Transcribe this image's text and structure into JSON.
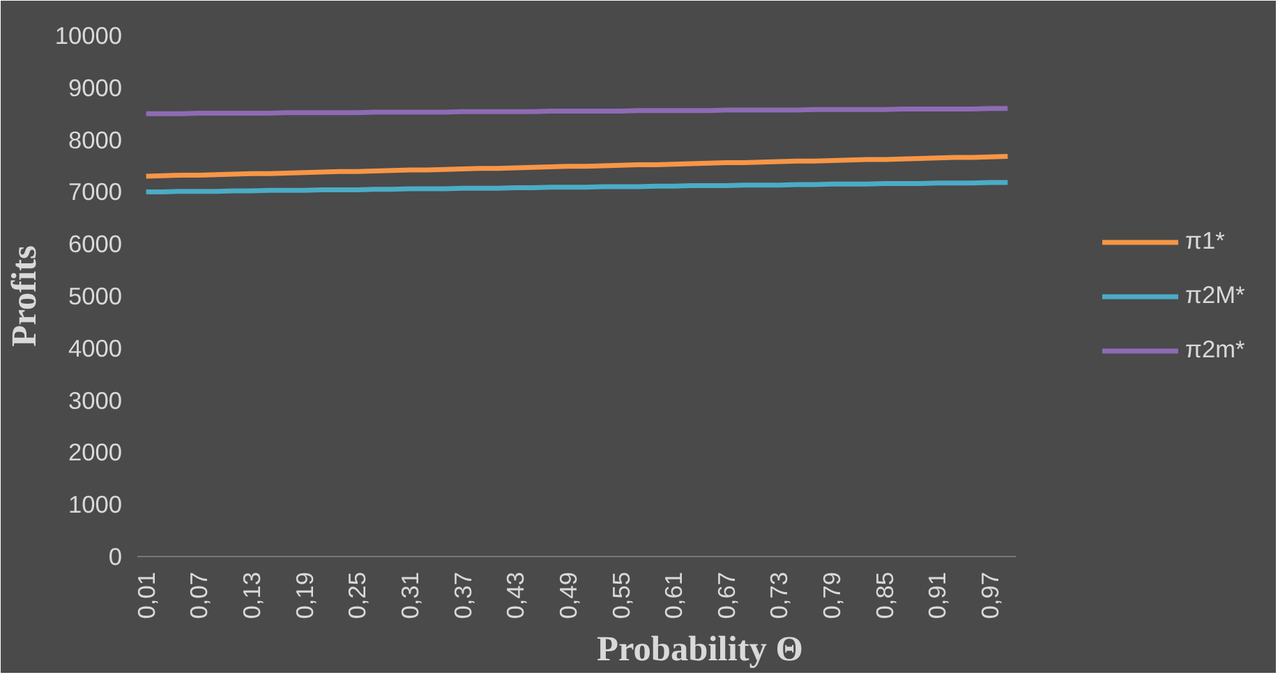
{
  "chart_data": {
    "type": "line",
    "xlabel": "Probability Θ",
    "ylabel": "Profits",
    "categories": [
      "0,01",
      null,
      null,
      "0,07",
      null,
      null,
      "0,13",
      null,
      null,
      "0,19",
      null,
      null,
      "0,25",
      null,
      null,
      "0,31",
      null,
      null,
      "0,37",
      null,
      null,
      "0,43",
      null,
      null,
      "0,49",
      null,
      null,
      "0,55",
      null,
      null,
      "0,61",
      null,
      null,
      "0,67",
      null,
      null,
      "0,73",
      null,
      null,
      "0,79",
      null,
      null,
      "0,85",
      null,
      null,
      "0,91",
      null,
      null,
      "0,97",
      null
    ],
    "series": [
      {
        "name": "π1*",
        "color": "#f79646",
        "values": [
          7300,
          7310,
          7320,
          7320,
          7330,
          7340,
          7350,
          7350,
          7360,
          7370,
          7380,
          7390,
          7390,
          7400,
          7410,
          7420,
          7420,
          7430,
          7440,
          7450,
          7450,
          7460,
          7470,
          7480,
          7490,
          7490,
          7500,
          7510,
          7520,
          7520,
          7530,
          7540,
          7550,
          7560,
          7560,
          7570,
          7580,
          7590,
          7590,
          7600,
          7610,
          7620,
          7620,
          7630,
          7640,
          7650,
          7660,
          7660,
          7670,
          7680
        ]
      },
      {
        "name": "π2M*",
        "color": "#4bacc6",
        "values": [
          7000,
          7000,
          7010,
          7010,
          7010,
          7020,
          7020,
          7030,
          7030,
          7030,
          7040,
          7040,
          7040,
          7050,
          7050,
          7060,
          7060,
          7060,
          7070,
          7070,
          7070,
          7080,
          7080,
          7090,
          7090,
          7090,
          7100,
          7100,
          7100,
          7110,
          7110,
          7120,
          7120,
          7120,
          7130,
          7130,
          7130,
          7140,
          7140,
          7150,
          7150,
          7150,
          7160,
          7160,
          7160,
          7170,
          7170,
          7170,
          7180,
          7180
        ]
      },
      {
        "name": "π2m*",
        "color": "#8e6bb5",
        "values": [
          8500,
          8500,
          8500,
          8510,
          8510,
          8510,
          8510,
          8510,
          8520,
          8520,
          8520,
          8520,
          8520,
          8530,
          8530,
          8530,
          8530,
          8530,
          8540,
          8540,
          8540,
          8540,
          8540,
          8550,
          8550,
          8550,
          8550,
          8550,
          8560,
          8560,
          8560,
          8560,
          8560,
          8570,
          8570,
          8570,
          8570,
          8570,
          8580,
          8580,
          8580,
          8580,
          8580,
          8590,
          8590,
          8590,
          8590,
          8590,
          8600,
          8600
        ]
      }
    ],
    "ylim": [
      0,
      10000
    ],
    "yticks": [
      0,
      1000,
      2000,
      3000,
      4000,
      5000,
      6000,
      7000,
      8000,
      9000,
      10000
    ],
    "grid": false,
    "legend": "right",
    "marker": "none",
    "line_style": "solid"
  }
}
